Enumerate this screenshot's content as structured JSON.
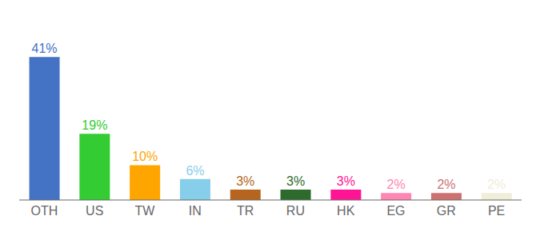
{
  "chart_data": {
    "type": "bar",
    "categories": [
      "OTH",
      "US",
      "TW",
      "IN",
      "TR",
      "RU",
      "HK",
      "EG",
      "GR",
      "PE"
    ],
    "values": [
      41,
      19,
      10,
      6,
      3,
      3,
      3,
      2,
      2,
      2
    ],
    "value_labels": [
      "41%",
      "19%",
      "10%",
      "6%",
      "3%",
      "3%",
      "3%",
      "2%",
      "2%",
      "2%"
    ],
    "data_labels": true,
    "colors": [
      "#4472C4",
      "#33CC33",
      "#FFA500",
      "#87CEEB",
      "#B5651D",
      "#2D6B2D",
      "#FF1493",
      "#FF85B3",
      "#CD7070",
      "#F0EDD8"
    ],
    "ylim": [
      0,
      50
    ],
    "tick_labels": "x",
    "grid": false
  }
}
